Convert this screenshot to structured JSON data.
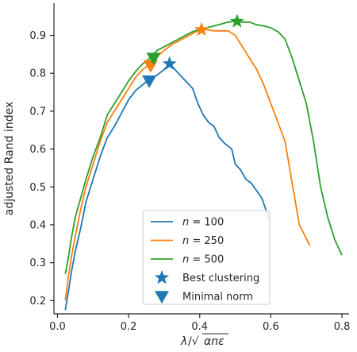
{
  "chart_data": {
    "type": "line",
    "ylabel": "adjusted Rand index",
    "xlabel": "λ/√αnε",
    "xlim": [
      -0.01,
      0.82
    ],
    "ylim": [
      0.165,
      0.985
    ],
    "x_ticks": [
      "0.0",
      "0.2",
      "0.4",
      "0.6",
      "0.8"
    ],
    "x_tick_values": [
      0.0,
      0.2,
      0.4,
      0.6,
      0.8
    ],
    "y_ticks": [
      "0.2",
      "0.3",
      "0.4",
      "0.5",
      "0.6",
      "0.7",
      "0.8",
      "0.9"
    ],
    "y_tick_values": [
      0.2,
      0.3,
      0.4,
      0.5,
      0.6,
      0.7,
      0.8,
      0.9
    ],
    "grid": false,
    "legend_position": "lower-center",
    "series": [
      {
        "name": "n = 100",
        "n_value": "100",
        "color": "#1f77b4",
        "points": [
          [
            0.022,
            0.175
          ],
          [
            0.03,
            0.22
          ],
          [
            0.04,
            0.28
          ],
          [
            0.05,
            0.33
          ],
          [
            0.065,
            0.39
          ],
          [
            0.08,
            0.46
          ],
          [
            0.1,
            0.52
          ],
          [
            0.12,
            0.58
          ],
          [
            0.14,
            0.63
          ],
          [
            0.16,
            0.66
          ],
          [
            0.18,
            0.695
          ],
          [
            0.2,
            0.73
          ],
          [
            0.22,
            0.755
          ],
          [
            0.24,
            0.77
          ],
          [
            0.26,
            0.785
          ],
          [
            0.28,
            0.795
          ],
          [
            0.3,
            0.81
          ],
          [
            0.315,
            0.825
          ],
          [
            0.33,
            0.81
          ],
          [
            0.345,
            0.795
          ],
          [
            0.36,
            0.78
          ],
          [
            0.38,
            0.76
          ],
          [
            0.395,
            0.72
          ],
          [
            0.41,
            0.69
          ],
          [
            0.425,
            0.67
          ],
          [
            0.44,
            0.66
          ],
          [
            0.455,
            0.63
          ],
          [
            0.47,
            0.615
          ],
          [
            0.49,
            0.6
          ],
          [
            0.5,
            0.56
          ],
          [
            0.515,
            0.545
          ],
          [
            0.53,
            0.52
          ],
          [
            0.545,
            0.51
          ],
          [
            0.56,
            0.49
          ],
          [
            0.575,
            0.47
          ],
          [
            0.595,
            0.415
          ]
        ]
      },
      {
        "name": "n = 250",
        "n_value": "250",
        "color": "#ff7f0e",
        "points": [
          [
            0.022,
            0.2
          ],
          [
            0.03,
            0.26
          ],
          [
            0.04,
            0.32
          ],
          [
            0.05,
            0.37
          ],
          [
            0.065,
            0.44
          ],
          [
            0.08,
            0.5
          ],
          [
            0.1,
            0.56
          ],
          [
            0.12,
            0.62
          ],
          [
            0.14,
            0.67
          ],
          [
            0.16,
            0.7
          ],
          [
            0.18,
            0.73
          ],
          [
            0.2,
            0.76
          ],
          [
            0.22,
            0.79
          ],
          [
            0.24,
            0.81
          ],
          [
            0.26,
            0.825
          ],
          [
            0.28,
            0.845
          ],
          [
            0.3,
            0.86
          ],
          [
            0.32,
            0.875
          ],
          [
            0.34,
            0.885
          ],
          [
            0.36,
            0.895
          ],
          [
            0.38,
            0.905
          ],
          [
            0.4,
            0.915
          ],
          [
            0.42,
            0.915
          ],
          [
            0.44,
            0.912
          ],
          [
            0.46,
            0.912
          ],
          [
            0.48,
            0.912
          ],
          [
            0.5,
            0.9
          ],
          [
            0.52,
            0.87
          ],
          [
            0.54,
            0.84
          ],
          [
            0.56,
            0.81
          ],
          [
            0.58,
            0.77
          ],
          [
            0.6,
            0.72
          ],
          [
            0.62,
            0.67
          ],
          [
            0.64,
            0.62
          ],
          [
            0.66,
            0.51
          ],
          [
            0.68,
            0.4
          ],
          [
            0.71,
            0.345
          ]
        ]
      },
      {
        "name": "n = 500",
        "n_value": "500",
        "color": "#2ca02c",
        "points": [
          [
            0.022,
            0.27
          ],
          [
            0.03,
            0.31
          ],
          [
            0.04,
            0.37
          ],
          [
            0.05,
            0.42
          ],
          [
            0.065,
            0.47
          ],
          [
            0.08,
            0.52
          ],
          [
            0.1,
            0.58
          ],
          [
            0.12,
            0.63
          ],
          [
            0.14,
            0.69
          ],
          [
            0.16,
            0.72
          ],
          [
            0.18,
            0.75
          ],
          [
            0.2,
            0.78
          ],
          [
            0.22,
            0.805
          ],
          [
            0.24,
            0.825
          ],
          [
            0.26,
            0.84
          ],
          [
            0.28,
            0.86
          ],
          [
            0.3,
            0.87
          ],
          [
            0.32,
            0.88
          ],
          [
            0.34,
            0.89
          ],
          [
            0.36,
            0.9
          ],
          [
            0.38,
            0.91
          ],
          [
            0.4,
            0.915
          ],
          [
            0.42,
            0.92
          ],
          [
            0.44,
            0.925
          ],
          [
            0.46,
            0.93
          ],
          [
            0.48,
            0.935
          ],
          [
            0.5,
            0.937
          ],
          [
            0.52,
            0.935
          ],
          [
            0.54,
            0.935
          ],
          [
            0.56,
            0.928
          ],
          [
            0.58,
            0.925
          ],
          [
            0.6,
            0.92
          ],
          [
            0.62,
            0.91
          ],
          [
            0.64,
            0.89
          ],
          [
            0.66,
            0.84
          ],
          [
            0.68,
            0.78
          ],
          [
            0.7,
            0.72
          ],
          [
            0.72,
            0.62
          ],
          [
            0.74,
            0.5
          ],
          [
            0.76,
            0.42
          ],
          [
            0.78,
            0.36
          ],
          [
            0.8,
            0.32
          ]
        ]
      }
    ],
    "markers": [
      {
        "kind": "Best clustering",
        "series": "n = 100",
        "shape": "star",
        "x": 0.315,
        "y": 0.825,
        "color": "#1f77b4"
      },
      {
        "kind": "Best clustering",
        "series": "n = 250",
        "shape": "star",
        "x": 0.405,
        "y": 0.915,
        "color": "#ff7f0e"
      },
      {
        "kind": "Best clustering",
        "series": "n = 500",
        "shape": "star",
        "x": 0.505,
        "y": 0.937,
        "color": "#2ca02c"
      },
      {
        "kind": "Minimal norm",
        "series": "n = 100",
        "shape": "triangle-down",
        "x": 0.258,
        "y": 0.78,
        "color": "#1f77b4"
      },
      {
        "kind": "Minimal norm",
        "series": "n = 250",
        "shape": "triangle-down",
        "x": 0.262,
        "y": 0.82,
        "color": "#ff7f0e"
      },
      {
        "kind": "Minimal norm",
        "series": "n = 500",
        "shape": "triangle-down",
        "x": 0.27,
        "y": 0.84,
        "color": "#2ca02c"
      }
    ],
    "legend": [
      {
        "type": "line",
        "var": "n",
        "value": " = 100",
        "color": "#1f77b4"
      },
      {
        "type": "line",
        "var": "n",
        "value": " = 250",
        "color": "#ff7f0e"
      },
      {
        "type": "line",
        "var": "n",
        "value": " = 500",
        "color": "#2ca02c"
      },
      {
        "type": "star",
        "label": "Best clustering",
        "color": "#1f77b4"
      },
      {
        "type": "triangle-down",
        "label": "Minimal norm",
        "color": "#1f77b4"
      }
    ]
  }
}
